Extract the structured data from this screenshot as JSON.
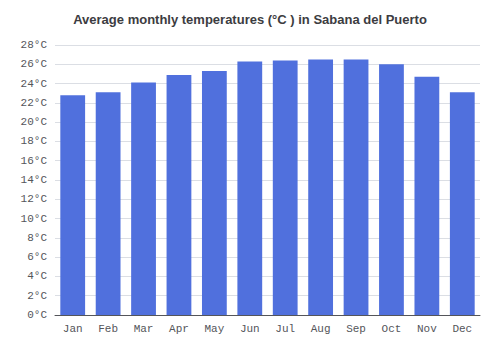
{
  "chart_data": {
    "type": "bar",
    "title": "Average monthly temperatures (°C ) in Sabana del Puerto",
    "categories": [
      "Jan",
      "Feb",
      "Mar",
      "Apr",
      "May",
      "Jun",
      "Jul",
      "Aug",
      "Sep",
      "Oct",
      "Nov",
      "Dec"
    ],
    "values": [
      22.8,
      23.1,
      24.1,
      24.9,
      25.3,
      26.3,
      26.4,
      26.5,
      26.5,
      26.0,
      24.7,
      23.1
    ],
    "ylim": [
      0,
      28
    ],
    "yticks": [
      {
        "value": 0,
        "label": "0°C"
      },
      {
        "value": 2,
        "label": "2°C"
      },
      {
        "value": 4,
        "label": "4°C"
      },
      {
        "value": 6,
        "label": "6°C"
      },
      {
        "value": 8,
        "label": "8°C"
      },
      {
        "value": 10,
        "label": "10°C"
      },
      {
        "value": 12,
        "label": "12°C"
      },
      {
        "value": 14,
        "label": "14°C"
      },
      {
        "value": 16,
        "label": "16°C"
      },
      {
        "value": 18,
        "label": "18°C"
      },
      {
        "value": 20,
        "label": "20°C"
      },
      {
        "value": 22,
        "label": "22°C"
      },
      {
        "value": 24,
        "label": "24°C"
      },
      {
        "value": 26,
        "label": "26°C"
      },
      {
        "value": 28,
        "label": "28°C"
      }
    ],
    "grid": true
  }
}
